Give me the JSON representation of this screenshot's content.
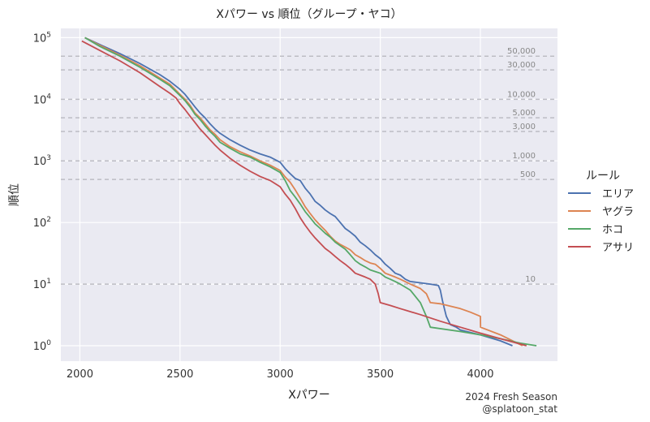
{
  "chart_data": {
    "type": "line",
    "title": "Xパワー vs 順位（グループ・ヤコ）",
    "xlabel": "Xパワー",
    "ylabel": "順位",
    "xlim": [
      1905,
      4385
    ],
    "ylim_log10": [
      -0.25,
      5.15
    ],
    "yscale": "log",
    "x_ticks": [
      2000,
      2500,
      3000,
      3500,
      4000
    ],
    "y_ticks": [
      {
        "value": 1,
        "base": "10",
        "exp": "0"
      },
      {
        "value": 10,
        "base": "10",
        "exp": "1"
      },
      {
        "value": 100,
        "base": "10",
        "exp": "2"
      },
      {
        "value": 1000,
        "base": "10",
        "exp": "3"
      },
      {
        "value": 10000,
        "base": "10",
        "exp": "4"
      },
      {
        "value": 100000,
        "base": "10",
        "exp": "5"
      }
    ],
    "reference_lines": [
      {
        "value": 50000,
        "label": "50,000"
      },
      {
        "value": 30000,
        "label": "30,000"
      },
      {
        "value": 10000,
        "label": "10,000"
      },
      {
        "value": 5000,
        "label": "5,000"
      },
      {
        "value": 3000,
        "label": "3,000"
      },
      {
        "value": 1000,
        "label": "1,000"
      },
      {
        "value": 500,
        "label": "500"
      },
      {
        "value": 10,
        "label": "10"
      }
    ],
    "grid": true,
    "legend_title": "ルール",
    "legend_position": "right",
    "series": [
      {
        "name": "エリア",
        "color": "#4c72b0",
        "points": [
          [
            2025,
            100000
          ],
          [
            2100,
            77000
          ],
          [
            2200,
            55000
          ],
          [
            2300,
            38000
          ],
          [
            2400,
            25000
          ],
          [
            2450,
            19500
          ],
          [
            2500,
            14500
          ],
          [
            2525,
            12000
          ],
          [
            2550,
            9500
          ],
          [
            2575,
            7500
          ],
          [
            2600,
            6000
          ],
          [
            2625,
            5000
          ],
          [
            2650,
            4000
          ],
          [
            2675,
            3300
          ],
          [
            2700,
            2800
          ],
          [
            2750,
            2200
          ],
          [
            2800,
            1800
          ],
          [
            2850,
            1500
          ],
          [
            2900,
            1300
          ],
          [
            2950,
            1150
          ],
          [
            3000,
            950
          ],
          [
            3025,
            750
          ],
          [
            3050,
            620
          ],
          [
            3075,
            520
          ],
          [
            3100,
            480
          ],
          [
            3125,
            360
          ],
          [
            3150,
            290
          ],
          [
            3175,
            220
          ],
          [
            3200,
            190
          ],
          [
            3225,
            160
          ],
          [
            3250,
            140
          ],
          [
            3275,
            125
          ],
          [
            3300,
            100
          ],
          [
            3325,
            80
          ],
          [
            3350,
            70
          ],
          [
            3375,
            60
          ],
          [
            3400,
            48
          ],
          [
            3425,
            42
          ],
          [
            3450,
            36
          ],
          [
            3475,
            30
          ],
          [
            3500,
            26
          ],
          [
            3525,
            21
          ],
          [
            3550,
            18
          ],
          [
            3575,
            15
          ],
          [
            3600,
            14
          ],
          [
            3625,
            12
          ],
          [
            3650,
            11
          ],
          [
            3700,
            10.5
          ],
          [
            3750,
            10
          ],
          [
            3790,
            9.5
          ],
          [
            3800,
            8
          ],
          [
            3810,
            5.5
          ],
          [
            3820,
            4
          ],
          [
            3830,
            3
          ],
          [
            3850,
            2.2
          ],
          [
            3880,
            2
          ],
          [
            3900,
            1.8
          ],
          [
            4000,
            1.5
          ],
          [
            4100,
            1.2
          ],
          [
            4160,
            1.0
          ]
        ]
      },
      {
        "name": "ヤグラ",
        "color": "#dd8452",
        "points": [
          [
            2025,
            100000
          ],
          [
            2100,
            75000
          ],
          [
            2200,
            52000
          ],
          [
            2300,
            35000
          ],
          [
            2400,
            22000
          ],
          [
            2450,
            17500
          ],
          [
            2500,
            12000
          ],
          [
            2525,
            10000
          ],
          [
            2550,
            8000
          ],
          [
            2575,
            6000
          ],
          [
            2600,
            5000
          ],
          [
            2625,
            4000
          ],
          [
            2650,
            3200
          ],
          [
            2675,
            2700
          ],
          [
            2700,
            2200
          ],
          [
            2750,
            1700
          ],
          [
            2800,
            1400
          ],
          [
            2850,
            1200
          ],
          [
            2900,
            1000
          ],
          [
            2950,
            850
          ],
          [
            3000,
            700
          ],
          [
            3025,
            550
          ],
          [
            3050,
            450
          ],
          [
            3075,
            340
          ],
          [
            3100,
            250
          ],
          [
            3125,
            180
          ],
          [
            3150,
            140
          ],
          [
            3175,
            110
          ],
          [
            3200,
            90
          ],
          [
            3225,
            75
          ],
          [
            3250,
            60
          ],
          [
            3275,
            50
          ],
          [
            3300,
            44
          ],
          [
            3325,
            40
          ],
          [
            3350,
            36
          ],
          [
            3375,
            30
          ],
          [
            3400,
            27
          ],
          [
            3425,
            24
          ],
          [
            3450,
            22
          ],
          [
            3475,
            21
          ],
          [
            3500,
            18
          ],
          [
            3525,
            15
          ],
          [
            3550,
            14
          ],
          [
            3575,
            13
          ],
          [
            3600,
            12
          ],
          [
            3650,
            10
          ],
          [
            3700,
            8.5
          ],
          [
            3730,
            7
          ],
          [
            3750,
            5
          ],
          [
            3800,
            4.8
          ],
          [
            3900,
            4
          ],
          [
            3950,
            3.5
          ],
          [
            4000,
            3.0
          ],
          [
            4001,
            2.0
          ],
          [
            4100,
            1.5
          ],
          [
            4210,
            1.0
          ]
        ]
      },
      {
        "name": "ホコ",
        "color": "#55a868",
        "points": [
          [
            2025,
            100000
          ],
          [
            2100,
            72000
          ],
          [
            2200,
            50000
          ],
          [
            2300,
            33000
          ],
          [
            2400,
            21000
          ],
          [
            2450,
            16500
          ],
          [
            2500,
            11500
          ],
          [
            2525,
            9500
          ],
          [
            2550,
            7500
          ],
          [
            2575,
            5700
          ],
          [
            2600,
            4700
          ],
          [
            2625,
            3700
          ],
          [
            2650,
            3000
          ],
          [
            2675,
            2500
          ],
          [
            2700,
            2000
          ],
          [
            2750,
            1600
          ],
          [
            2800,
            1300
          ],
          [
            2850,
            1150
          ],
          [
            2900,
            950
          ],
          [
            2950,
            800
          ],
          [
            3000,
            650
          ],
          [
            3025,
            480
          ],
          [
            3050,
            330
          ],
          [
            3075,
            260
          ],
          [
            3100,
            200
          ],
          [
            3125,
            150
          ],
          [
            3150,
            120
          ],
          [
            3175,
            95
          ],
          [
            3200,
            80
          ],
          [
            3225,
            67
          ],
          [
            3250,
            58
          ],
          [
            3275,
            48
          ],
          [
            3300,
            42
          ],
          [
            3325,
            37
          ],
          [
            3350,
            30
          ],
          [
            3375,
            24
          ],
          [
            3400,
            21
          ],
          [
            3425,
            19
          ],
          [
            3450,
            17
          ],
          [
            3475,
            16
          ],
          [
            3500,
            15
          ],
          [
            3525,
            13
          ],
          [
            3550,
            12
          ],
          [
            3575,
            11
          ],
          [
            3600,
            10
          ],
          [
            3650,
            8
          ],
          [
            3700,
            5
          ],
          [
            3730,
            3
          ],
          [
            3750,
            2.0
          ],
          [
            3900,
            1.7
          ],
          [
            4000,
            1.5
          ],
          [
            4100,
            1.3
          ],
          [
            4200,
            1.1
          ],
          [
            4280,
            1.0
          ]
        ]
      },
      {
        "name": "アサリ",
        "color": "#c44e52",
        "points": [
          [
            2010,
            88000
          ],
          [
            2100,
            62000
          ],
          [
            2200,
            42000
          ],
          [
            2300,
            27000
          ],
          [
            2400,
            16000
          ],
          [
            2450,
            12500
          ],
          [
            2480,
            10500
          ],
          [
            2500,
            8500
          ],
          [
            2525,
            6800
          ],
          [
            2550,
            5300
          ],
          [
            2575,
            4200
          ],
          [
            2600,
            3300
          ],
          [
            2625,
            2700
          ],
          [
            2650,
            2200
          ],
          [
            2675,
            1800
          ],
          [
            2700,
            1500
          ],
          [
            2750,
            1100
          ],
          [
            2800,
            850
          ],
          [
            2850,
            680
          ],
          [
            2900,
            560
          ],
          [
            2950,
            480
          ],
          [
            3000,
            380
          ],
          [
            3025,
            290
          ],
          [
            3050,
            230
          ],
          [
            3075,
            170
          ],
          [
            3100,
            120
          ],
          [
            3125,
            90
          ],
          [
            3150,
            70
          ],
          [
            3175,
            56
          ],
          [
            3200,
            46
          ],
          [
            3225,
            38
          ],
          [
            3250,
            33
          ],
          [
            3275,
            28
          ],
          [
            3300,
            24
          ],
          [
            3325,
            21
          ],
          [
            3350,
            18
          ],
          [
            3375,
            15
          ],
          [
            3400,
            14
          ],
          [
            3425,
            13
          ],
          [
            3450,
            12
          ],
          [
            3475,
            10
          ],
          [
            3490,
            7
          ],
          [
            3500,
            5
          ],
          [
            3550,
            4.5
          ],
          [
            3600,
            4.0
          ],
          [
            3700,
            3.2
          ],
          [
            3800,
            2.5
          ],
          [
            3900,
            2.0
          ],
          [
            4000,
            1.6
          ],
          [
            4100,
            1.3
          ],
          [
            4230,
            1.0
          ]
        ]
      }
    ],
    "footer_line1": "2024 Fresh Season",
    "footer_line2": "@splatoon_stat"
  }
}
